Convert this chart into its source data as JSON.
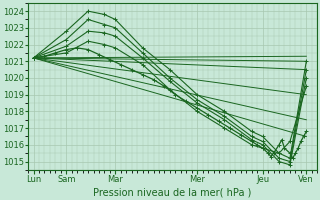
{
  "title": "Pression niveau de la mer( hPa )",
  "bg_color": "#c8e8d8",
  "grid_color": "#a8c8b0",
  "line_color": "#1a6620",
  "ylim": [
    1014.5,
    1024.5
  ],
  "yticks": [
    1015,
    1016,
    1017,
    1018,
    1019,
    1020,
    1021,
    1022,
    1023,
    1024
  ],
  "xtick_labels": [
    "Lun",
    "Sam",
    "Mar",
    "Mer",
    "Jeu",
    "Ven"
  ],
  "xtick_positions": [
    0,
    0.6,
    1.5,
    3.0,
    4.2,
    5.0
  ],
  "xlim": [
    -0.1,
    5.2
  ],
  "straight_lines": [
    {
      "x": [
        0,
        5.0
      ],
      "y": [
        1021.2,
        1021.3
      ]
    },
    {
      "x": [
        0,
        5.0
      ],
      "y": [
        1021.2,
        1021.0
      ]
    },
    {
      "x": [
        0,
        5.0
      ],
      "y": [
        1021.2,
        1020.5
      ]
    },
    {
      "x": [
        0,
        5.0
      ],
      "y": [
        1021.2,
        1019.0
      ]
    },
    {
      "x": [
        0,
        5.0
      ],
      "y": [
        1021.2,
        1017.5
      ]
    },
    {
      "x": [
        0,
        5.0
      ],
      "y": [
        1021.2,
        1016.5
      ]
    }
  ],
  "curved_lines": [
    {
      "x": [
        0,
        0.6,
        1.0,
        1.3,
        1.5,
        2.0,
        2.5,
        3.0,
        3.5,
        4.0,
        4.2,
        4.5,
        4.7,
        5.0
      ],
      "y": [
        1021.2,
        1022.8,
        1024.0,
        1023.8,
        1023.5,
        1021.8,
        1020.5,
        1019.0,
        1018.0,
        1016.8,
        1016.5,
        1015.5,
        1015.2,
        1021.0
      ]
    },
    {
      "x": [
        0,
        0.6,
        1.0,
        1.3,
        1.5,
        2.0,
        2.5,
        3.0,
        3.5,
        4.0,
        4.2,
        4.5,
        4.7,
        5.0
      ],
      "y": [
        1021.2,
        1022.3,
        1023.5,
        1023.2,
        1023.0,
        1021.5,
        1020.0,
        1018.7,
        1017.7,
        1016.5,
        1016.2,
        1015.2,
        1015.0,
        1020.5
      ]
    },
    {
      "x": [
        0,
        0.6,
        1.0,
        1.3,
        1.5,
        2.0,
        2.5,
        3.0,
        3.5,
        4.0,
        4.2,
        4.5,
        4.7,
        5.0
      ],
      "y": [
        1021.2,
        1021.9,
        1022.8,
        1022.7,
        1022.5,
        1021.2,
        1019.8,
        1018.5,
        1017.5,
        1016.3,
        1016.0,
        1015.0,
        1014.8,
        1020.0
      ]
    },
    {
      "x": [
        0,
        0.6,
        1.0,
        1.3,
        1.5,
        2.0,
        2.5,
        3.0,
        3.5,
        4.0,
        4.2,
        4.5,
        4.7,
        5.0
      ],
      "y": [
        1021.2,
        1021.5,
        1022.2,
        1022.0,
        1021.8,
        1020.8,
        1019.3,
        1018.0,
        1017.0,
        1016.0,
        1015.8,
        1015.5,
        1016.2,
        1019.5
      ]
    }
  ],
  "main_line": {
    "x": [
      0,
      0.2,
      0.4,
      0.6,
      0.8,
      1.0,
      1.2,
      1.4,
      1.6,
      1.8,
      2.0,
      2.2,
      2.4,
      2.6,
      2.8,
      3.0,
      3.2,
      3.4,
      3.6,
      3.8,
      4.0,
      4.1,
      4.2,
      4.3,
      4.35,
      4.4,
      4.5,
      4.55,
      4.6,
      4.7,
      4.75,
      4.8,
      4.85,
      4.9,
      4.95,
      5.0
    ],
    "y": [
      1021.2,
      1021.3,
      1021.5,
      1021.7,
      1021.8,
      1021.7,
      1021.4,
      1021.1,
      1020.8,
      1020.5,
      1020.2,
      1019.9,
      1019.5,
      1019.0,
      1018.6,
      1018.2,
      1017.8,
      1017.4,
      1017.0,
      1016.6,
      1016.2,
      1016.0,
      1015.8,
      1015.5,
      1015.3,
      1015.5,
      1016.0,
      1016.3,
      1015.8,
      1015.5,
      1015.2,
      1015.5,
      1015.8,
      1016.2,
      1016.5,
      1016.8
    ]
  }
}
